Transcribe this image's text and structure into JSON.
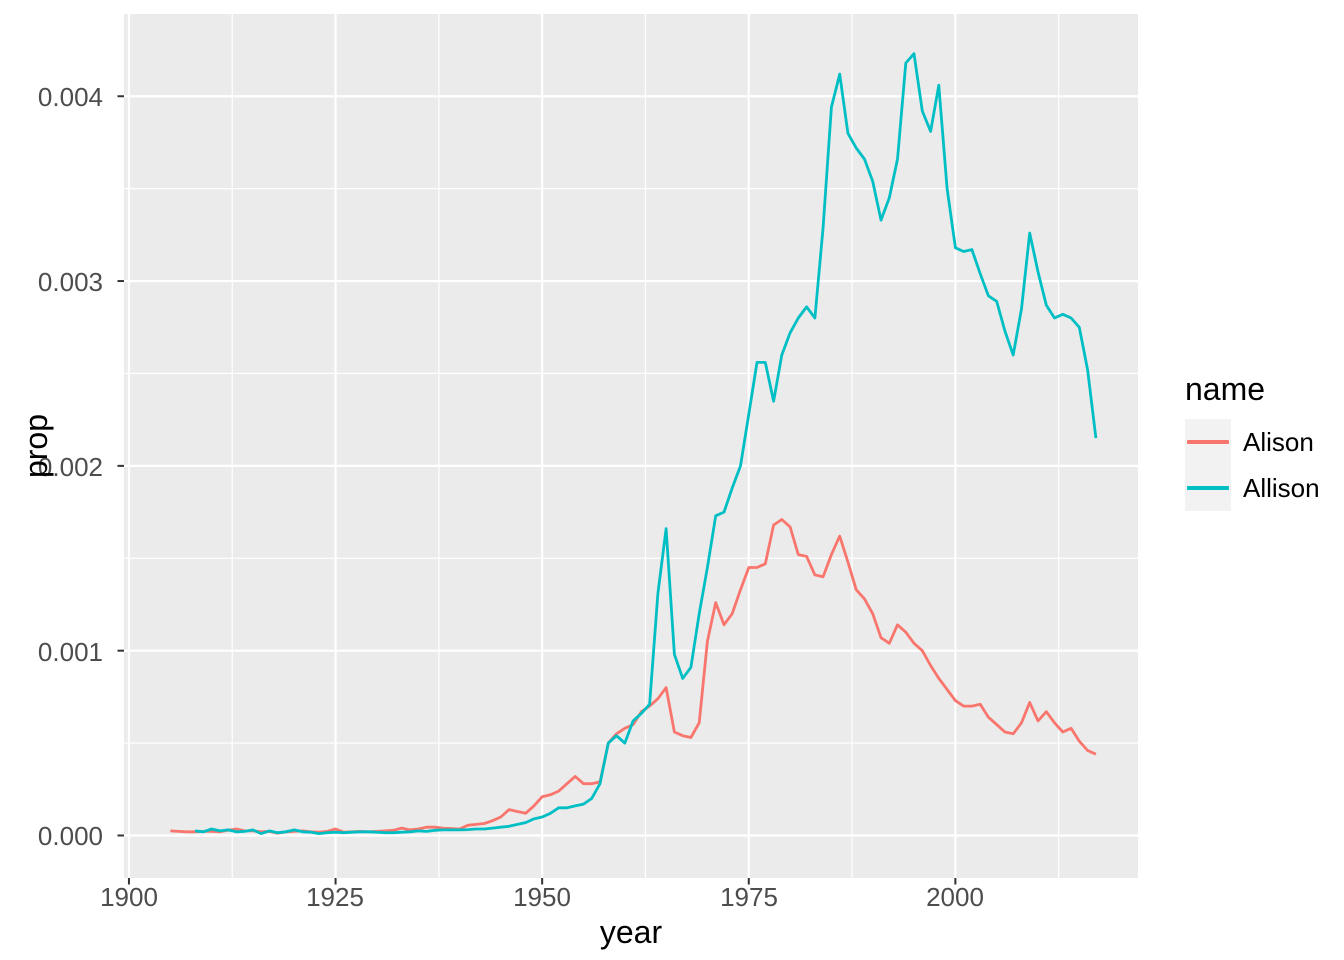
{
  "chart_data": {
    "type": "line",
    "title": "",
    "xlabel": "year",
    "ylabel": "prop",
    "x_ticks": [
      1900,
      1925,
      1950,
      1975,
      2000
    ],
    "x_tick_labels": [
      "1900",
      "1925",
      "1950",
      "1975",
      "2000"
    ],
    "x_minor_ticks": [
      1912.5,
      1937.5,
      1962.5,
      1987.5,
      2012.5
    ],
    "y_ticks": [
      0,
      0.001,
      0.002,
      0.003,
      0.004
    ],
    "y_tick_labels": [
      "0.000",
      "0.001",
      "0.002",
      "0.003",
      "0.004"
    ],
    "y_minor_ticks": [
      0.0005,
      0.0015,
      0.0025,
      0.0035
    ],
    "xlim": [
      1899.4,
      2022.1
    ],
    "ylim": [
      -0.00023,
      0.004445
    ],
    "grid": true,
    "legend_position": "right",
    "legend_title": "name",
    "colors": {
      "panel_bg": "#EBEBEB",
      "grid": "#FFFFFF",
      "tick_mark": "#333333",
      "tick_label": "#4D4D4D",
      "legend_key_bg": "#F2F2F2",
      "alison": "#F8766D",
      "allison": "#00BFC4"
    },
    "series": [
      {
        "name": "Alison",
        "color": "#F8766D",
        "start_year": 1905,
        "values": [
          2.5e-05,
          2.2e-05,
          2e-05,
          2e-05,
          2.2e-05,
          2.2e-05,
          2e-05,
          2.8e-05,
          3.5e-05,
          2.5e-05,
          2.5e-05,
          2e-05,
          2.2e-05,
          1.2e-05,
          2e-05,
          2.2e-05,
          2.5e-05,
          2e-05,
          1.8e-05,
          2.2e-05,
          3.5e-05,
          1.8e-05,
          2e-05,
          2.2e-05,
          2e-05,
          2.2e-05,
          2.5e-05,
          2.8e-05,
          4e-05,
          3e-05,
          3.5e-05,
          4.5e-05,
          4.5e-05,
          4e-05,
          3.8e-05,
          3.5e-05,
          5.5e-05,
          6e-05,
          6.5e-05,
          8e-05,
          0.0001,
          0.00014,
          0.00013,
          0.00012,
          0.00016,
          0.00021,
          0.00022,
          0.00024,
          0.00028,
          0.00032,
          0.00028,
          0.00028,
          0.00029,
          0.0005,
          0.00055,
          0.00058,
          0.0006,
          0.00067,
          0.0007,
          0.00074,
          0.0008,
          0.00056,
          0.00054,
          0.00053,
          0.00061,
          0.00105,
          0.00126,
          0.00114,
          0.0012,
          0.00133,
          0.00145,
          0.00145,
          0.00147,
          0.00168,
          0.00171,
          0.00167,
          0.00152,
          0.00151,
          0.00141,
          0.0014,
          0.00152,
          0.00162,
          0.00148,
          0.00133,
          0.00128,
          0.0012,
          0.00107,
          0.00104,
          0.00114,
          0.0011,
          0.00104,
          0.001,
          0.00092,
          0.00085,
          0.00079,
          0.00073,
          0.0007,
          0.0007,
          0.00071,
          0.00064,
          0.0006,
          0.00056,
          0.00055,
          0.00061,
          0.00072,
          0.00062,
          0.00067,
          0.00061,
          0.00056,
          0.00058,
          0.00051,
          0.00046,
          0.00044
        ]
      },
      {
        "name": "Allison",
        "color": "#00BFC4",
        "start_year": 1908,
        "values": [
          2.5e-05,
          2e-05,
          3.5e-05,
          2.5e-05,
          3e-05,
          2e-05,
          2.2e-05,
          3e-05,
          1e-05,
          2.5e-05,
          1.5e-05,
          2e-05,
          3e-05,
          2e-05,
          1.8e-05,
          1e-05,
          1.5e-05,
          1.8e-05,
          1.5e-05,
          1.8e-05,
          2e-05,
          2e-05,
          1.8e-05,
          1.5e-05,
          1.5e-05,
          1.8e-05,
          2e-05,
          2.5e-05,
          2.2e-05,
          2.8e-05,
          3e-05,
          3e-05,
          3e-05,
          3.2e-05,
          3.5e-05,
          3.5e-05,
          4e-05,
          4.5e-05,
          5e-05,
          6e-05,
          7e-05,
          9e-05,
          0.0001,
          0.00012,
          0.00015,
          0.00015,
          0.00016,
          0.00017,
          0.0002,
          0.00028,
          0.0005,
          0.00054,
          0.0005,
          0.00062,
          0.00066,
          0.00071,
          0.00131,
          0.00166,
          0.00098,
          0.00085,
          0.00091,
          0.0012,
          0.00145,
          0.00173,
          0.00175,
          0.00188,
          0.002,
          0.00228,
          0.00256,
          0.00256,
          0.00235,
          0.0026,
          0.00272,
          0.0028,
          0.00286,
          0.0028,
          0.00329,
          0.00394,
          0.00412,
          0.0038,
          0.00372,
          0.00366,
          0.00354,
          0.00333,
          0.00345,
          0.00366,
          0.00418,
          0.00423,
          0.00392,
          0.00381,
          0.00406,
          0.0035,
          0.00318,
          0.00316,
          0.00317,
          0.00304,
          0.00292,
          0.00289,
          0.00273,
          0.0026,
          0.00285,
          0.00326,
          0.00305,
          0.00287,
          0.0028,
          0.00282,
          0.0028,
          0.00275,
          0.00252,
          0.00215
        ]
      }
    ]
  },
  "legend": {
    "title": "name",
    "entries": [
      {
        "label": "Alison"
      },
      {
        "label": "Allison"
      }
    ]
  }
}
